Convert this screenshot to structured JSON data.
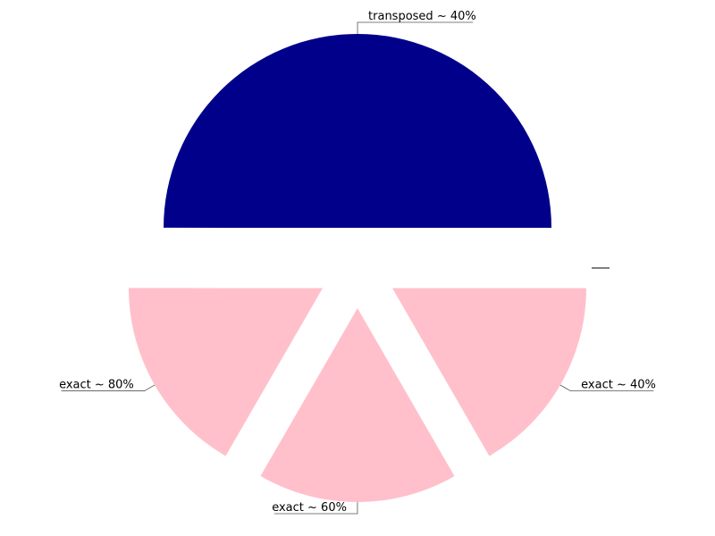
{
  "chart_data": {
    "type": "pie",
    "title": "",
    "slices": [
      {
        "label": "transposed ~ 40%",
        "value": 50,
        "color": "#00008b"
      },
      {
        "label": "exact ~ 80%",
        "value": 16.67,
        "color": "#ffc0cb"
      },
      {
        "label": "exact ~ 60%",
        "value": 16.67,
        "color": "#ffc0cb"
      },
      {
        "label": "exact ~ 40%",
        "value": 16.67,
        "color": "#ffc0cb"
      },
      {
        "label": "",
        "value": 0,
        "color": "#ffc0cb"
      },
      {
        "label": "",
        "value": 0,
        "color": "#ffc0cb"
      },
      {
        "label": "",
        "value": 0,
        "color": "#ffc0cb"
      }
    ],
    "start_angle_deg": 0,
    "direction": "counterclockwise",
    "exploded": true,
    "legend": "none"
  }
}
